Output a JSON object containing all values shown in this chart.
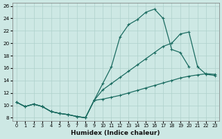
{
  "xlabel": "Humidex (Indice chaleur)",
  "xlim": [
    -0.5,
    23.5
  ],
  "ylim": [
    7.5,
    26.5
  ],
  "yticks": [
    8,
    10,
    12,
    14,
    16,
    18,
    20,
    22,
    24,
    26
  ],
  "xticks": [
    0,
    1,
    2,
    3,
    4,
    5,
    6,
    7,
    8,
    9,
    10,
    11,
    12,
    13,
    14,
    15,
    16,
    17,
    18,
    19,
    20,
    21,
    22,
    23
  ],
  "bg_color": "#cde8e4",
  "grid_color": "#aed0cb",
  "line_color": "#1a6b60",
  "line1_x": [
    0,
    1,
    2,
    3,
    4,
    5,
    6,
    7,
    8,
    9,
    10,
    11,
    12,
    13,
    14,
    15,
    16,
    17,
    18,
    19,
    20
  ],
  "line1_y": [
    10.5,
    9.8,
    10.2,
    9.8,
    9.0,
    8.7,
    8.5,
    8.2,
    8.0,
    10.8,
    13.5,
    16.2,
    21.0,
    23.0,
    23.8,
    25.0,
    25.5,
    24.0,
    19.0,
    18.5,
    16.2
  ],
  "line2_x": [
    0,
    1,
    2,
    3,
    4,
    5,
    6,
    7,
    8,
    9,
    10,
    11,
    12,
    13,
    14,
    15,
    16,
    17,
    18,
    19,
    20,
    21,
    22,
    23
  ],
  "line2_y": [
    10.5,
    9.8,
    10.2,
    9.8,
    9.0,
    8.7,
    8.5,
    8.2,
    8.0,
    10.8,
    12.5,
    13.5,
    14.5,
    15.5,
    16.5,
    17.5,
    18.5,
    19.5,
    20.0,
    21.5,
    21.8,
    16.2,
    15.0,
    14.8
  ],
  "line3_x": [
    0,
    1,
    2,
    3,
    4,
    5,
    6,
    7,
    8,
    9,
    10,
    11,
    12,
    13,
    14,
    15,
    16,
    17,
    18,
    19,
    20,
    21,
    22,
    23
  ],
  "line3_y": [
    10.5,
    9.8,
    10.2,
    9.8,
    9.0,
    8.7,
    8.5,
    8.2,
    8.0,
    10.8,
    11.0,
    11.3,
    11.6,
    12.0,
    12.4,
    12.8,
    13.2,
    13.6,
    14.0,
    14.4,
    14.7,
    14.9,
    15.1,
    15.0
  ]
}
